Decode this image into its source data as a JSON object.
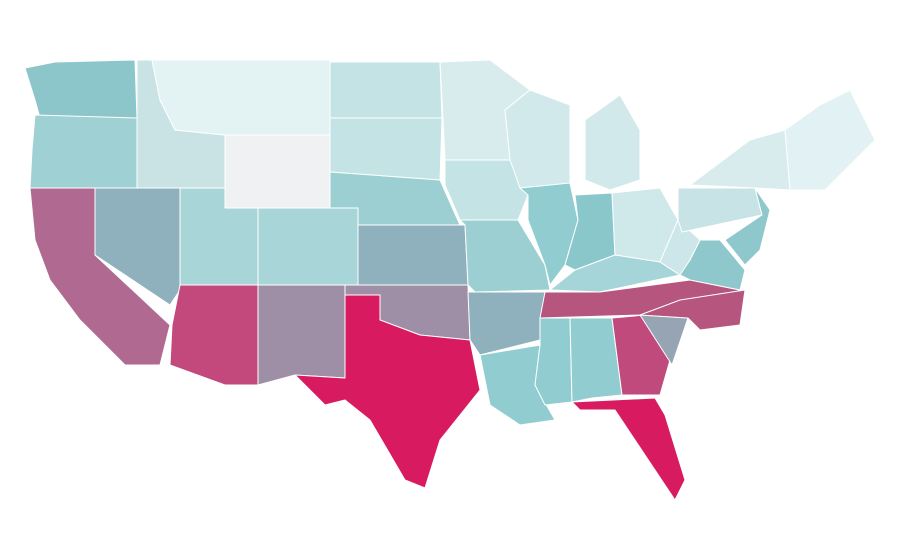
{
  "map": {
    "regions": [
      {
        "color": "#8cc6cb"
      },
      {
        "color": "#9fd0d3"
      },
      {
        "color": "#b06a92"
      },
      {
        "color": "#8fb0bd"
      },
      {
        "color": "#c9e3e5"
      },
      {
        "color": "#e3f2f3"
      },
      {
        "color": "#eff1f2"
      },
      {
        "color": "#a8d6d8"
      },
      {
        "color": "#c3497c"
      },
      {
        "color": "#a8d6d8"
      },
      {
        "color": "#9e8fa6"
      },
      {
        "color": "#c4e3e4"
      },
      {
        "color": "#c4e3e4"
      },
      {
        "color": "#9ccfd2"
      },
      {
        "color": "#8fb1bd"
      },
      {
        "color": "#9e8fa6"
      },
      {
        "color": "#d81b60"
      },
      {
        "color": "#d8ecee"
      },
      {
        "color": "#c4e3e4"
      },
      {
        "color": "#9ccfd2"
      },
      {
        "color": "#8fb1bd"
      },
      {
        "color": "#91cdd0"
      },
      {
        "color": "#d2e9eb"
      },
      {
        "color": "#91cdd0"
      },
      {
        "color": "#d2e9eb"
      },
      {
        "color": "#8ac7cb"
      },
      {
        "color": "#cfe8ea"
      },
      {
        "color": "#a5d5d8"
      },
      {
        "color": "#b6567f"
      },
      {
        "color": "#91cdd0"
      },
      {
        "color": "#91cdd0"
      },
      {
        "color": "#c04a7c"
      },
      {
        "color": "#d81b60"
      },
      {
        "color": "#96a4b4"
      },
      {
        "color": "#b6567f"
      },
      {
        "color": "#8ec8cc"
      },
      {
        "color": "#cde6e9"
      },
      {
        "color": "#c7e3e6"
      },
      {
        "color": "#d8ecee"
      },
      {
        "color": "#e2f1f3"
      },
      {
        "color": "#8ec8cc"
      }
    ]
  }
}
